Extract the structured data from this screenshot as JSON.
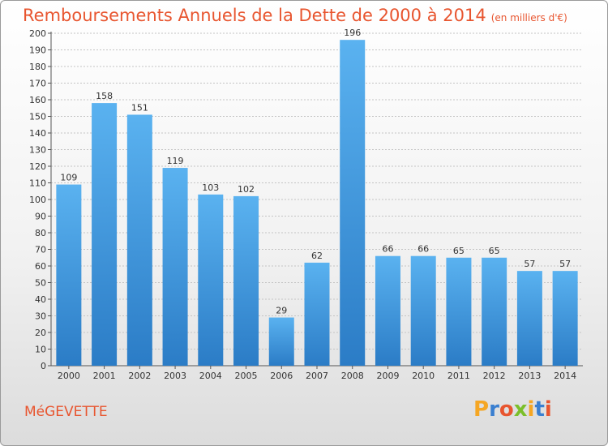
{
  "chart_data": {
    "type": "bar",
    "title": "Remboursements Annuels de la Dette de 2000 à 2014",
    "subtitle": "(en milliers d'€)",
    "categories": [
      "2000",
      "2001",
      "2002",
      "2003",
      "2004",
      "2005",
      "2006",
      "2007",
      "2008",
      "2009",
      "2010",
      "2011",
      "2012",
      "2013",
      "2014"
    ],
    "values": [
      109,
      158,
      151,
      119,
      103,
      102,
      29,
      62,
      196,
      66,
      66,
      65,
      65,
      57,
      57
    ],
    "ylim": [
      0,
      200
    ],
    "ytick_step": 10,
    "grid": true,
    "bar_color": "#4a9ee0"
  },
  "footer": {
    "commune": "MéGEVETTE",
    "logo_letters": [
      "P",
      "r",
      "o",
      "x",
      "i",
      "t",
      "i"
    ],
    "logo_colors": [
      "#f5a623",
      "#3a7fd0",
      "#e8552f",
      "#7bbf2a",
      "#f5a623",
      "#3a7fd0",
      "#e8552f"
    ]
  }
}
